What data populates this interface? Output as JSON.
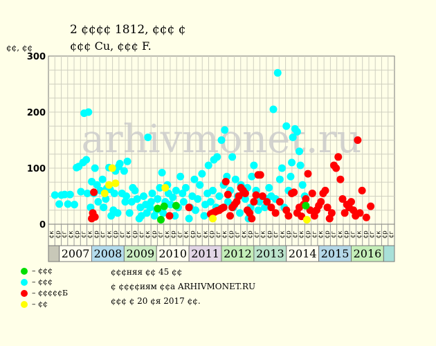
{
  "header": {
    "title_line1": "2 ¢¢¢¢ 1812, ¢¢¢ ¢",
    "title_line2": "¢¢¢ Cu, ¢¢¢ F."
  },
  "watermark": "arhivmonet.ru",
  "legend": [
    {
      "color": "#00dd00",
      "label": "– ¢¢¢"
    },
    {
      "color": "#00ffff",
      "label": "– ¢¢¢"
    },
    {
      "color": "#ff0000",
      "label": "– ¢¢¢¢¢Б"
    },
    {
      "color": "#ffff00",
      "label": "– ¢¢"
    }
  ],
  "notes": {
    "line1": "¢¢¢няя ¢¢ 45 ¢¢",
    "line2": "¢ ¢¢¢¢иям ¢¢а ARHIVMONET.RU",
    "line3": "¢¢¢ ¢ 20 ¢я 2017 ¢¢."
  },
  "chart_data": {
    "type": "scatter",
    "ylabel": "¢¢, ¢¢",
    "ylim": [
      0,
      300
    ],
    "yticks": [
      0,
      100,
      200,
      300
    ],
    "xlim": [
      0,
      54
    ],
    "half_labels": [
      "¢к",
      "¢р",
      "¢г",
      "¢к",
      "¢р",
      "¢г",
      "¢к",
      "¢р",
      "¢г",
      "¢к",
      "¢р",
      "¢г",
      "¢к",
      "¢р",
      "¢г",
      "¢к",
      "¢р",
      "¢г",
      "¢к",
      "¢р",
      "¢г",
      "¢к",
      "¢р",
      "¢г",
      "¢к",
      "¢р",
      "¢г",
      "¢к",
      "¢р",
      "¢г",
      "¢к",
      "¢р",
      "¢г",
      "¢к",
      "¢р",
      "¢г",
      "¢к",
      "¢р",
      "¢г",
      "¢к",
      "¢р",
      "¢г",
      "¢к",
      "¢р",
      "¢г",
      "¢к",
      "¢р",
      "¢г",
      "¢к",
      "¢р",
      "¢г",
      "¢к",
      "¢р",
      "¢г"
    ],
    "years": [
      {
        "label": "",
        "start": 0,
        "end": 1,
        "color": "#c8c8b8"
      },
      {
        "label": "2007",
        "start": 1,
        "end": 4,
        "color": "#fffff0"
      },
      {
        "label": "2008",
        "start": 4,
        "end": 7,
        "color": "#b4dced"
      },
      {
        "label": "2009",
        "start": 7,
        "end": 10,
        "color": "#cdeec4"
      },
      {
        "label": "2010",
        "start": 10,
        "end": 13,
        "color": "#fffff0"
      },
      {
        "label": "2011",
        "start": 13,
        "end": 16,
        "color": "#e2d6e6"
      },
      {
        "label": "2012",
        "start": 16,
        "end": 19,
        "color": "#c4eeb8"
      },
      {
        "label": "2013",
        "start": 19,
        "end": 22,
        "color": "#bce4cc"
      },
      {
        "label": "2014",
        "start": 22,
        "end": 25,
        "color": "#fffff0"
      },
      {
        "label": "2015",
        "start": 25,
        "end": 28,
        "color": "#b4d8e8"
      },
      {
        "label": "2016",
        "start": 28,
        "end": 31,
        "color": "#c4eeb8"
      },
      {
        "label": "",
        "start": 31,
        "end": 32,
        "color": "#a8e0d8"
      }
    ],
    "series": [
      {
        "color": "#00ffff",
        "points": [
          [
            0.6,
            52
          ],
          [
            1.0,
            36
          ],
          [
            1.2,
            52
          ],
          [
            1.5,
            53
          ],
          [
            1.8,
            36
          ],
          [
            2.0,
            53
          ],
          [
            2.4,
            35
          ],
          [
            2.6,
            101
          ],
          [
            2.8,
            103
          ],
          [
            3.0,
            58
          ],
          [
            3.2,
            110
          ],
          [
            3.3,
            198
          ],
          [
            3.5,
            115
          ],
          [
            3.6,
            55
          ],
          [
            3.7,
            200
          ],
          [
            3.9,
            30
          ],
          [
            4.0,
            76
          ],
          [
            4.2,
            55
          ],
          [
            4.3,
            100
          ],
          [
            4.5,
            70
          ],
          [
            4.6,
            40
          ],
          [
            4.8,
            60
          ],
          [
            5.0,
            80
          ],
          [
            5.1,
            30
          ],
          [
            5.3,
            45
          ],
          [
            5.4,
            64
          ],
          [
            5.6,
            101
          ],
          [
            5.7,
            62
          ],
          [
            5.8,
            15
          ],
          [
            6.0,
            25
          ],
          [
            6.1,
            55
          ],
          [
            6.2,
            95
          ],
          [
            6.4,
            20
          ],
          [
            6.5,
            103
          ],
          [
            6.6,
            108
          ],
          [
            6.8,
            55
          ],
          [
            7.0,
            95
          ],
          [
            7.1,
            40
          ],
          [
            7.2,
            50
          ],
          [
            7.3,
            112
          ],
          [
            7.5,
            20
          ],
          [
            7.7,
            40
          ],
          [
            7.8,
            65
          ],
          [
            8.0,
            60
          ],
          [
            8.2,
            45
          ],
          [
            8.4,
            10
          ],
          [
            8.5,
            30
          ],
          [
            8.6,
            15
          ],
          [
            8.8,
            50
          ],
          [
            9.0,
            35
          ],
          [
            9.1,
            20
          ],
          [
            9.2,
            155
          ],
          [
            9.4,
            30
          ],
          [
            9.5,
            40
          ],
          [
            9.6,
            55
          ],
          [
            9.8,
            15
          ],
          [
            10.0,
            25
          ],
          [
            10.1,
            45
          ],
          [
            10.3,
            65
          ],
          [
            10.5,
            92
          ],
          [
            10.6,
            20
          ],
          [
            10.8,
            40
          ],
          [
            11.0,
            70
          ],
          [
            11.1,
            55
          ],
          [
            11.3,
            35
          ],
          [
            11.5,
            48
          ],
          [
            11.7,
            15
          ],
          [
            11.8,
            60
          ],
          [
            12.0,
            30
          ],
          [
            12.2,
            85
          ],
          [
            12.4,
            55
          ],
          [
            12.5,
            40
          ],
          [
            12.7,
            65
          ],
          [
            13.0,
            10
          ],
          [
            13.1,
            30
          ],
          [
            13.3,
            50
          ],
          [
            13.5,
            80
          ],
          [
            13.6,
            25
          ],
          [
            13.8,
            45
          ],
          [
            14.0,
            70
          ],
          [
            14.2,
            90
          ],
          [
            14.4,
            15
          ],
          [
            14.5,
            35
          ],
          [
            14.7,
            55
          ],
          [
            14.8,
            105
          ],
          [
            15.0,
            40
          ],
          [
            15.2,
            60
          ],
          [
            15.3,
            115
          ],
          [
            15.5,
            30
          ],
          [
            15.6,
            120
          ],
          [
            15.8,
            50
          ],
          [
            16.0,
            150
          ],
          [
            16.2,
            70
          ],
          [
            16.3,
            168
          ],
          [
            16.5,
            85
          ],
          [
            16.6,
            40
          ],
          [
            16.8,
            60
          ],
          [
            17.0,
            120
          ],
          [
            17.1,
            30
          ],
          [
            17.3,
            80
          ],
          [
            17.5,
            50
          ],
          [
            17.7,
            20
          ],
          [
            17.8,
            70
          ],
          [
            18.0,
            55
          ],
          [
            18.2,
            45
          ],
          [
            18.4,
            65
          ],
          [
            18.5,
            10
          ],
          [
            18.7,
            30
          ],
          [
            18.8,
            85
          ],
          [
            19.0,
            105
          ],
          [
            19.2,
            60
          ],
          [
            19.4,
            25
          ],
          [
            19.5,
            40
          ],
          [
            20.0,
            30
          ],
          [
            20.2,
            45
          ],
          [
            20.4,
            65
          ],
          [
            20.6,
            50
          ],
          [
            20.8,
            205
          ],
          [
            21.0,
            45
          ],
          [
            21.2,
            270
          ],
          [
            21.4,
            80
          ],
          [
            21.6,
            100
          ],
          [
            21.8,
            30
          ],
          [
            22.0,
            175
          ],
          [
            22.2,
            60
          ],
          [
            22.4,
            85
          ],
          [
            22.5,
            110
          ],
          [
            22.6,
            155
          ],
          [
            22.8,
            170
          ],
          [
            23.0,
            165
          ],
          [
            23.2,
            130
          ],
          [
            23.3,
            105
          ],
          [
            23.5,
            70
          ],
          [
            23.7,
            50
          ]
        ]
      },
      {
        "color": "#ff0000",
        "points": [
          [
            4.0,
            10
          ],
          [
            4.1,
            20
          ],
          [
            4.2,
            57
          ],
          [
            4.3,
            13
          ],
          [
            11.2,
            15
          ],
          [
            13.0,
            30
          ],
          [
            15.0,
            18
          ],
          [
            15.2,
            20
          ],
          [
            15.4,
            22
          ],
          [
            15.6,
            24
          ],
          [
            15.8,
            25
          ],
          [
            16.0,
            28
          ],
          [
            16.2,
            30
          ],
          [
            16.4,
            76
          ],
          [
            16.6,
            53
          ],
          [
            16.8,
            15
          ],
          [
            17.0,
            30
          ],
          [
            17.2,
            35
          ],
          [
            17.4,
            40
          ],
          [
            17.6,
            50
          ],
          [
            17.8,
            65
          ],
          [
            18.0,
            60
          ],
          [
            18.2,
            55
          ],
          [
            18.4,
            25
          ],
          [
            18.6,
            20
          ],
          [
            18.8,
            10
          ],
          [
            19.0,
            40
          ],
          [
            19.2,
            52
          ],
          [
            19.4,
            88
          ],
          [
            19.6,
            88
          ],
          [
            19.8,
            50
          ],
          [
            20.2,
            40
          ],
          [
            20.6,
            30
          ],
          [
            21.0,
            20
          ],
          [
            21.4,
            40
          ],
          [
            22.0,
            25
          ],
          [
            22.2,
            15
          ],
          [
            22.5,
            55
          ],
          [
            22.7,
            57
          ],
          [
            23.0,
            20
          ],
          [
            23.2,
            30
          ],
          [
            23.4,
            14
          ],
          [
            23.6,
            35
          ],
          [
            23.8,
            45
          ],
          [
            24.0,
            90
          ],
          [
            24.2,
            25
          ],
          [
            24.4,
            55
          ],
          [
            24.6,
            15
          ],
          [
            24.8,
            25
          ],
          [
            25.0,
            33
          ],
          [
            25.2,
            40
          ],
          [
            25.4,
            55
          ],
          [
            25.6,
            60
          ],
          [
            25.8,
            30
          ],
          [
            26.0,
            10
          ],
          [
            26.2,
            20
          ],
          [
            26.4,
            105
          ],
          [
            26.6,
            100
          ],
          [
            26.8,
            120
          ],
          [
            27.0,
            80
          ],
          [
            27.2,
            45
          ],
          [
            27.4,
            20
          ],
          [
            27.6,
            35
          ],
          [
            27.8,
            30
          ],
          [
            28.0,
            40
          ],
          [
            28.2,
            25
          ],
          [
            28.4,
            15
          ],
          [
            28.6,
            150
          ],
          [
            28.8,
            20
          ],
          [
            29.0,
            60
          ],
          [
            29.4,
            12
          ],
          [
            29.8,
            32
          ]
        ]
      },
      {
        "color": "#00dd00",
        "points": [
          [
            10.1,
            28
          ],
          [
            10.4,
            8
          ],
          [
            10.7,
            32
          ],
          [
            11.8,
            33
          ],
          [
            23.8,
            33
          ]
        ]
      },
      {
        "color": "#ffff00",
        "points": [
          [
            5.2,
            55
          ],
          [
            5.6,
            70
          ],
          [
            5.9,
            100
          ],
          [
            6.2,
            73
          ],
          [
            10.8,
            65
          ],
          [
            15.2,
            10
          ],
          [
            23.9,
            8
          ]
        ]
      }
    ]
  }
}
